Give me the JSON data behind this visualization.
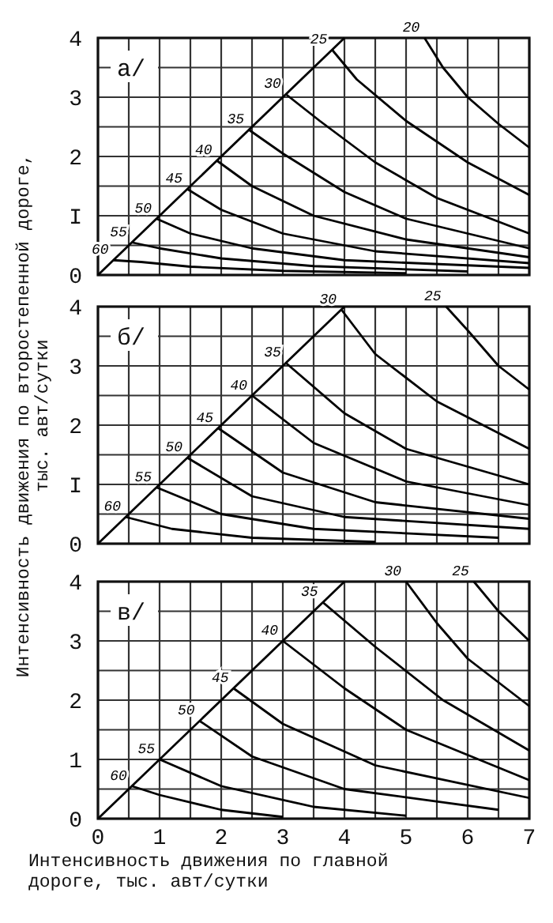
{
  "chart_data": [
    {
      "type": "line",
      "annotations": [
        "а/"
      ],
      "xlim": [
        0,
        7
      ],
      "ylim": [
        0,
        4
      ],
      "xticks": [
        0,
        {
          "value": 0.5,
          "label": null
        },
        1,
        {
          "value": 1.5,
          "label": null
        },
        2,
        {
          "value": 2.5,
          "label": null
        },
        3,
        {
          "value": 3.5,
          "label": null
        },
        4,
        {
          "value": 4.5,
          "label": null
        },
        5,
        {
          "value": 5.5,
          "label": null
        },
        6,
        {
          "value": 6.5,
          "label": null
        },
        7
      ],
      "yticks": [
        0,
        {
          "value": 0.5,
          "label": null
        },
        {
          "value": 1,
          "label": "I"
        },
        {
          "value": 1.5,
          "label": null
        },
        2,
        {
          "value": 2.5,
          "label": null
        },
        3,
        {
          "value": 3.5,
          "label": null
        },
        4
      ],
      "grid": true,
      "tick_labels": "y",
      "marker": "none",
      "line_style": "solid",
      "series": [
        {
          "color": "#000000",
          "x": [
            0,
            4
          ],
          "values": [
            0,
            4
          ]
        },
        {
          "name": "20",
          "color": "#000000",
          "x": [
            5.3,
            5.6,
            6.0,
            6.5,
            7
          ],
          "values": [
            4,
            3.5,
            3.0,
            2.55,
            2.15
          ]
        },
        {
          "name": "25",
          "color": "#000000",
          "x": [
            3.8,
            4.2,
            5,
            6,
            7
          ],
          "values": [
            3.8,
            3.3,
            2.6,
            1.9,
            1.35
          ]
        },
        {
          "name": "30",
          "color": "#000000",
          "x": [
            3.05,
            3.6,
            4.5,
            5.5,
            7
          ],
          "values": [
            3.05,
            2.6,
            1.9,
            1.3,
            0.7
          ]
        },
        {
          "name": "35",
          "color": "#000000",
          "x": [
            2.45,
            3,
            4,
            5,
            7
          ],
          "values": [
            2.45,
            2.05,
            1.4,
            0.95,
            0.45
          ]
        },
        {
          "name": "40",
          "color": "#000000",
          "x": [
            1.93,
            2.5,
            3.5,
            5,
            7
          ],
          "values": [
            1.93,
            1.5,
            1.0,
            0.6,
            0.3
          ]
        },
        {
          "name": "45",
          "color": "#000000",
          "x": [
            1.45,
            2,
            3,
            4.5,
            7
          ],
          "values": [
            1.45,
            1.1,
            0.7,
            0.4,
            0.2
          ]
        },
        {
          "name": "50",
          "color": "#000000",
          "x": [
            0.95,
            1.5,
            2.5,
            4,
            7
          ],
          "values": [
            0.95,
            0.7,
            0.45,
            0.25,
            0.12
          ]
        },
        {
          "name": "55",
          "color": "#000000",
          "x": [
            0.55,
            1,
            2,
            3.5,
            6
          ],
          "values": [
            0.55,
            0.45,
            0.28,
            0.15,
            0.06
          ]
        },
        {
          "name": "60",
          "color": "#000000",
          "x": [
            0.25,
            0.7,
            1.5,
            3,
            5
          ],
          "values": [
            0.25,
            0.22,
            0.14,
            0.07,
            0.03
          ]
        }
      ]
    },
    {
      "type": "line",
      "annotations": [
        "б/"
      ],
      "ylabel": "Интенсивность движения по второстепенной дороге, тыс. авт/сутки",
      "xlim": [
        0,
        7
      ],
      "ylim": [
        0,
        4
      ],
      "xticks": [
        0,
        {
          "value": 0.5,
          "label": null
        },
        1,
        {
          "value": 1.5,
          "label": null
        },
        2,
        {
          "value": 2.5,
          "label": null
        },
        3,
        {
          "value": 3.5,
          "label": null
        },
        4,
        {
          "value": 4.5,
          "label": null
        },
        5,
        {
          "value": 5.5,
          "label": null
        },
        6,
        {
          "value": 6.5,
          "label": null
        },
        7
      ],
      "yticks": [
        0,
        {
          "value": 0.5,
          "label": null
        },
        {
          "value": 1,
          "label": "I"
        },
        {
          "value": 1.5,
          "label": null
        },
        2,
        {
          "value": 2.5,
          "label": null
        },
        3,
        {
          "value": 3.5,
          "label": null
        },
        4
      ],
      "grid": true,
      "tick_labels": "y",
      "marker": "none",
      "line_style": "solid",
      "series": [
        {
          "color": "#000000",
          "x": [
            0,
            4
          ],
          "values": [
            0,
            4
          ]
        },
        {
          "name": "25",
          "color": "#000000",
          "x": [
            5.65,
            6.0,
            6.5,
            7
          ],
          "values": [
            4,
            3.6,
            3.0,
            2.6
          ]
        },
        {
          "name": "30",
          "color": "#000000",
          "x": [
            3.95,
            4.5,
            5.5,
            7
          ],
          "values": [
            3.95,
            3.2,
            2.4,
            1.6
          ]
        },
        {
          "name": "35",
          "color": "#000000",
          "x": [
            3.05,
            4,
            5,
            7
          ],
          "values": [
            3.05,
            2.2,
            1.6,
            1.0
          ]
        },
        {
          "name": "40",
          "color": "#000000",
          "x": [
            2.5,
            3.5,
            5,
            7
          ],
          "values": [
            2.5,
            1.7,
            1.05,
            0.65
          ]
        },
        {
          "name": "45",
          "color": "#000000",
          "x": [
            1.95,
            3,
            4.5,
            7
          ],
          "values": [
            1.95,
            1.2,
            0.7,
            0.42
          ]
        },
        {
          "name": "50",
          "color": "#000000",
          "x": [
            1.45,
            2.5,
            4,
            7
          ],
          "values": [
            1.45,
            0.8,
            0.45,
            0.25
          ]
        },
        {
          "name": "55",
          "color": "#000000",
          "x": [
            0.95,
            2,
            3.5,
            6.5
          ],
          "values": [
            0.95,
            0.5,
            0.25,
            0.1
          ]
        },
        {
          "name": "60",
          "color": "#000000",
          "x": [
            0.45,
            1.2,
            2.5,
            4.5
          ],
          "values": [
            0.45,
            0.25,
            0.1,
            0.03
          ]
        }
      ]
    },
    {
      "type": "line",
      "annotations": [
        "в/"
      ],
      "xlabel": "Интенсивность движения по главной дороге, тыс. авт/сутки",
      "xlim": [
        0,
        7
      ],
      "ylim": [
        0,
        4
      ],
      "xticks": [
        0,
        {
          "value": 0.5,
          "label": null
        },
        1,
        {
          "value": 1.5,
          "label": null
        },
        2,
        {
          "value": 2.5,
          "label": null
        },
        3,
        {
          "value": 3.5,
          "label": null
        },
        4,
        {
          "value": 4.5,
          "label": null
        },
        5,
        {
          "value": 5.5,
          "label": null
        },
        6,
        {
          "value": 6.5,
          "label": null
        },
        7
      ],
      "yticks": [
        0,
        {
          "value": 0.5,
          "label": null
        },
        1,
        {
          "value": 1.5,
          "label": null
        },
        2,
        {
          "value": 2.5,
          "label": null
        },
        3,
        {
          "value": 3.5,
          "label": null
        },
        4
      ],
      "grid": true,
      "marker": "none",
      "line_style": "solid",
      "series": [
        {
          "color": "#000000",
          "x": [
            0,
            4
          ],
          "values": [
            0,
            4
          ]
        },
        {
          "name": "25",
          "color": "#000000",
          "x": [
            6.1,
            6.5,
            7
          ],
          "values": [
            4,
            3.5,
            3.0
          ]
        },
        {
          "name": "30",
          "color": "#000000",
          "x": [
            5,
            5.5,
            6,
            7
          ],
          "values": [
            4,
            3.3,
            2.7,
            1.9
          ]
        },
        {
          "name": "35",
          "color": "#000000",
          "x": [
            3.65,
            4.5,
            5.6,
            7
          ],
          "values": [
            3.65,
            2.9,
            2.0,
            1.15
          ]
        },
        {
          "name": "40",
          "color": "#000000",
          "x": [
            3,
            4,
            5,
            7
          ],
          "values": [
            3,
            2.2,
            1.5,
            0.65
          ]
        },
        {
          "name": "45",
          "color": "#000000",
          "x": [
            2.2,
            3,
            4.5,
            7
          ],
          "values": [
            2.2,
            1.6,
            0.9,
            0.35
          ]
        },
        {
          "name": "50",
          "color": "#000000",
          "x": [
            1.65,
            2.5,
            4,
            6.5
          ],
          "values": [
            1.65,
            1.05,
            0.5,
            0.15
          ]
        },
        {
          "name": "55",
          "color": "#000000",
          "x": [
            1.0,
            2,
            3.5,
            5
          ],
          "values": [
            1.0,
            0.55,
            0.2,
            0.05
          ]
        },
        {
          "name": "60",
          "color": "#000000",
          "x": [
            0.55,
            1,
            2,
            3
          ],
          "values": [
            0.55,
            0.4,
            0.15,
            0.03
          ]
        }
      ]
    }
  ]
}
